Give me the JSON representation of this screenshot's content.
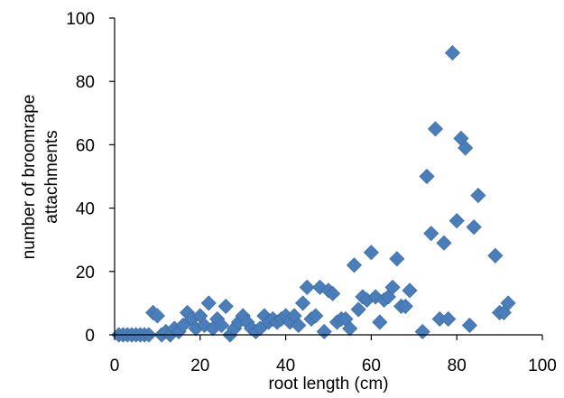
{
  "chart_data": {
    "type": "scatter",
    "title": "",
    "xlabel": "root length (cm)",
    "ylabel_lines": [
      "number of broomrape",
      "attachments"
    ],
    "xlim": [
      0,
      100
    ],
    "ylim": [
      0,
      100
    ],
    "x_ticks": [
      "0",
      "20",
      "40",
      "60",
      "80",
      "100"
    ],
    "y_ticks": [
      "0",
      "20",
      "40",
      "60",
      "80",
      "100"
    ],
    "grid": false,
    "legend": "none",
    "marker_color": "#4a7ebb",
    "marker": "diamond",
    "points": [
      {
        "x": 1,
        "y": 0
      },
      {
        "x": 2,
        "y": 0
      },
      {
        "x": 3,
        "y": 0
      },
      {
        "x": 4,
        "y": 0
      },
      {
        "x": 5,
        "y": 0
      },
      {
        "x": 6,
        "y": 0
      },
      {
        "x": 7,
        "y": 0
      },
      {
        "x": 8,
        "y": 0
      },
      {
        "x": 9,
        "y": 7
      },
      {
        "x": 10,
        "y": 6
      },
      {
        "x": 11,
        "y": 0
      },
      {
        "x": 12,
        "y": 1
      },
      {
        "x": 13,
        "y": 0
      },
      {
        "x": 14,
        "y": 2
      },
      {
        "x": 15,
        "y": 1
      },
      {
        "x": 16,
        "y": 3
      },
      {
        "x": 17,
        "y": 7
      },
      {
        "x": 18,
        "y": 5
      },
      {
        "x": 19,
        "y": 2
      },
      {
        "x": 20,
        "y": 6
      },
      {
        "x": 21,
        "y": 3
      },
      {
        "x": 22,
        "y": 10
      },
      {
        "x": 23,
        "y": 2
      },
      {
        "x": 24,
        "y": 5
      },
      {
        "x": 25,
        "y": 3
      },
      {
        "x": 26,
        "y": 9
      },
      {
        "x": 27,
        "y": 0
      },
      {
        "x": 28,
        "y": 2
      },
      {
        "x": 29,
        "y": 4
      },
      {
        "x": 30,
        "y": 6
      },
      {
        "x": 31,
        "y": 4
      },
      {
        "x": 32,
        "y": 2
      },
      {
        "x": 33,
        "y": 1
      },
      {
        "x": 34,
        "y": 2
      },
      {
        "x": 35,
        "y": 6
      },
      {
        "x": 36,
        "y": 4
      },
      {
        "x": 37,
        "y": 5
      },
      {
        "x": 38,
        "y": 4
      },
      {
        "x": 39,
        "y": 5
      },
      {
        "x": 40,
        "y": 6
      },
      {
        "x": 41,
        "y": 4
      },
      {
        "x": 42,
        "y": 6
      },
      {
        "x": 43,
        "y": 3
      },
      {
        "x": 44,
        "y": 10
      },
      {
        "x": 45,
        "y": 15
      },
      {
        "x": 46,
        "y": 5
      },
      {
        "x": 47,
        "y": 6
      },
      {
        "x": 48,
        "y": 15
      },
      {
        "x": 49,
        "y": 1
      },
      {
        "x": 50,
        "y": 14
      },
      {
        "x": 51,
        "y": 13
      },
      {
        "x": 52,
        "y": 4
      },
      {
        "x": 53,
        "y": 5
      },
      {
        "x": 54,
        "y": 5
      },
      {
        "x": 55,
        "y": 2
      },
      {
        "x": 56,
        "y": 22
      },
      {
        "x": 57,
        "y": 8
      },
      {
        "x": 58,
        "y": 12
      },
      {
        "x": 59,
        "y": 11
      },
      {
        "x": 60,
        "y": 26
      },
      {
        "x": 61,
        "y": 12
      },
      {
        "x": 62,
        "y": 4
      },
      {
        "x": 63,
        "y": 11
      },
      {
        "x": 64,
        "y": 12
      },
      {
        "x": 65,
        "y": 15
      },
      {
        "x": 66,
        "y": 24
      },
      {
        "x": 67,
        "y": 9
      },
      {
        "x": 68,
        "y": 9
      },
      {
        "x": 69,
        "y": 14
      },
      {
        "x": 72,
        "y": 1
      },
      {
        "x": 73,
        "y": 50
      },
      {
        "x": 74,
        "y": 32
      },
      {
        "x": 75,
        "y": 65
      },
      {
        "x": 76,
        "y": 5
      },
      {
        "x": 77,
        "y": 29
      },
      {
        "x": 78,
        "y": 5
      },
      {
        "x": 79,
        "y": 89
      },
      {
        "x": 80,
        "y": 36
      },
      {
        "x": 81,
        "y": 62
      },
      {
        "x": 82,
        "y": 59
      },
      {
        "x": 83,
        "y": 3
      },
      {
        "x": 84,
        "y": 34
      },
      {
        "x": 85,
        "y": 44
      },
      {
        "x": 89,
        "y": 25
      },
      {
        "x": 90,
        "y": 7
      },
      {
        "x": 91,
        "y": 7
      },
      {
        "x": 92,
        "y": 10
      }
    ]
  }
}
